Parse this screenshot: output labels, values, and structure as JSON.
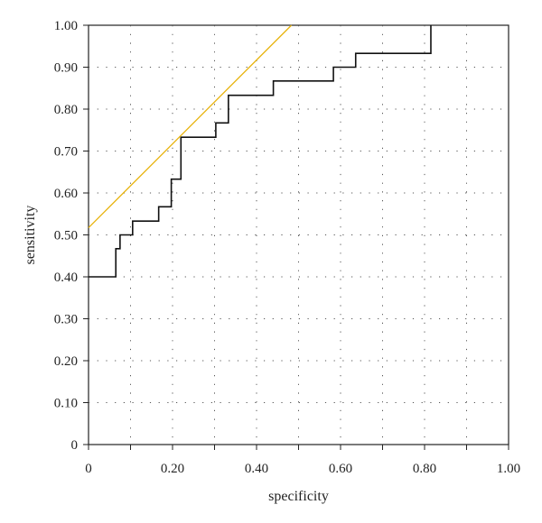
{
  "chart_data": {
    "type": "line",
    "title": "",
    "xlabel": "specificity",
    "ylabel": "sensitivity",
    "xlim": [
      0,
      1
    ],
    "ylim": [
      0,
      1
    ],
    "grid": true,
    "x_ticks": [
      0,
      0.2,
      0.4,
      0.6,
      0.8,
      1.0
    ],
    "x_tick_labels": [
      "0",
      "0.20",
      "0.40",
      "0.60",
      "0.80",
      "1.00"
    ],
    "x_minor_ticks": [
      0.1,
      0.3,
      0.5,
      0.7,
      0.9
    ],
    "y_ticks": [
      0,
      0.1,
      0.2,
      0.3,
      0.4,
      0.5,
      0.6,
      0.7,
      0.8,
      0.9,
      1.0
    ],
    "y_tick_labels": [
      "0",
      "0.10",
      "0.20",
      "0.30",
      "0.40",
      "0.50",
      "0.60",
      "0.70",
      "0.80",
      "0.90",
      "1.00"
    ],
    "series": [
      {
        "kind": "step",
        "color": "#111111",
        "points": [
          [
            0,
            0.4
          ],
          [
            0.065,
            0.4
          ],
          [
            0.065,
            0.467
          ],
          [
            0.075,
            0.467
          ],
          [
            0.075,
            0.5
          ],
          [
            0.105,
            0.5
          ],
          [
            0.105,
            0.533
          ],
          [
            0.167,
            0.533
          ],
          [
            0.167,
            0.567
          ],
          [
            0.197,
            0.567
          ],
          [
            0.197,
            0.633
          ],
          [
            0.22,
            0.633
          ],
          [
            0.22,
            0.733
          ],
          [
            0.303,
            0.733
          ],
          [
            0.303,
            0.767
          ],
          [
            0.333,
            0.767
          ],
          [
            0.333,
            0.833
          ],
          [
            0.44,
            0.833
          ],
          [
            0.44,
            0.867
          ],
          [
            0.583,
            0.867
          ],
          [
            0.583,
            0.9
          ],
          [
            0.636,
            0.9
          ],
          [
            0.636,
            0.933
          ],
          [
            0.815,
            0.933
          ],
          [
            0.815,
            1.0
          ]
        ]
      },
      {
        "kind": "line",
        "color": "#e8b40f",
        "points": [
          [
            0,
            0.517
          ],
          [
            0.483,
            1.0
          ]
        ]
      }
    ]
  }
}
